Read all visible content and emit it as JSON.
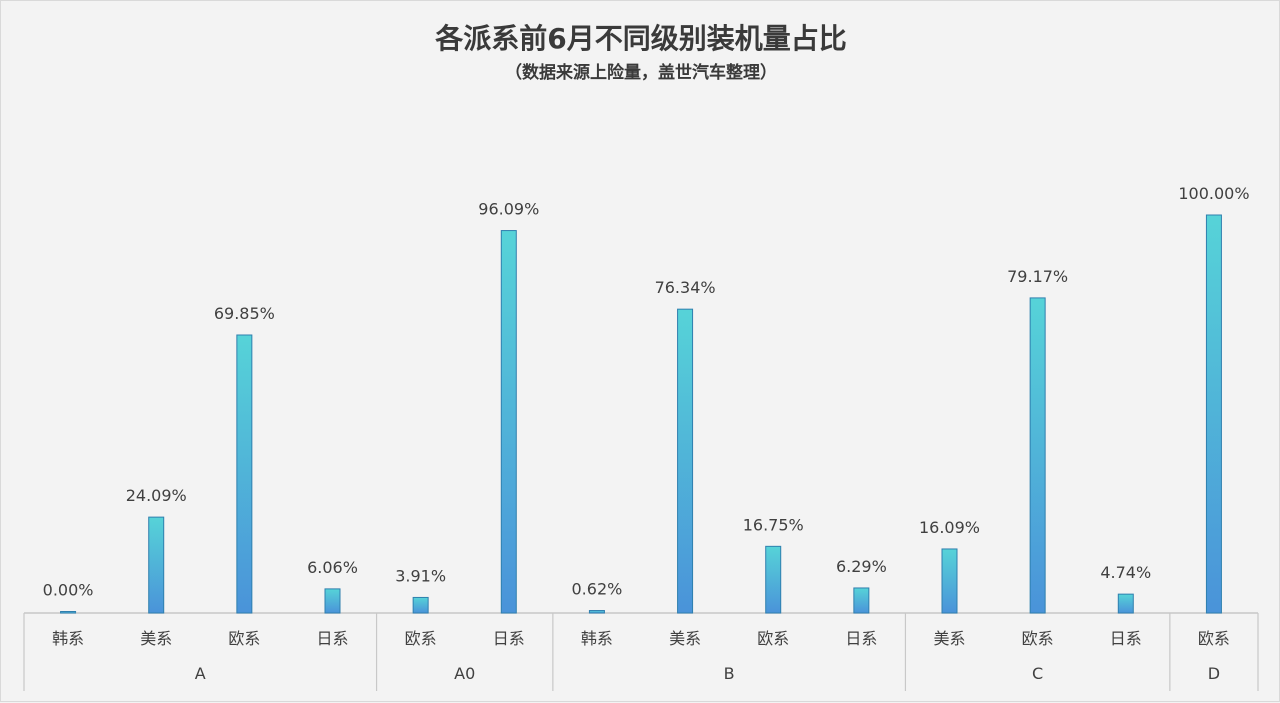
{
  "chart_data": {
    "type": "bar",
    "title": "各派系前6月不同级别装机量占比",
    "subtitle": "（数据来源上险量，盖世汽车整理）",
    "ylim": [
      0,
      100
    ],
    "value_format": "percent_2dp",
    "colors": {
      "bar_top": "#56d3d8",
      "bar_bottom": "#4a93d9",
      "bar_stroke": "#2f7fae",
      "axis": "#c8c8c8"
    },
    "groups": [
      {
        "name": "A",
        "categories": [
          "韩系",
          "美系",
          "欧系",
          "日系"
        ],
        "values": [
          0.0,
          24.09,
          69.85,
          6.06
        ]
      },
      {
        "name": "A0",
        "categories": [
          "欧系",
          "日系"
        ],
        "values": [
          3.91,
          96.09
        ]
      },
      {
        "name": "B",
        "categories": [
          "韩系",
          "美系",
          "欧系",
          "日系"
        ],
        "values": [
          0.62,
          76.34,
          16.75,
          6.29
        ]
      },
      {
        "name": "C",
        "categories": [
          "美系",
          "欧系",
          "日系"
        ],
        "values": [
          16.09,
          79.17,
          4.74
        ]
      },
      {
        "name": "D",
        "categories": [
          "欧系"
        ],
        "values": [
          100.0
        ]
      }
    ]
  }
}
